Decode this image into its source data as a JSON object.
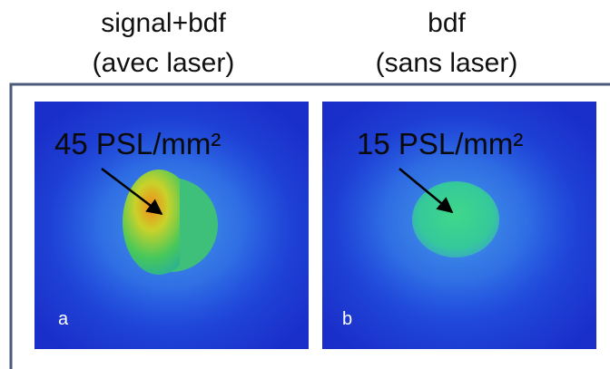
{
  "panels": [
    {
      "title": [
        "signal+bdf",
        "(avec laser)"
      ],
      "annotation": "45 PSL/mm²",
      "letter": "a"
    },
    {
      "title": [
        "bdf",
        "(sans laser)"
      ],
      "annotation": "15 PSL/mm²",
      "letter": "b"
    }
  ]
}
